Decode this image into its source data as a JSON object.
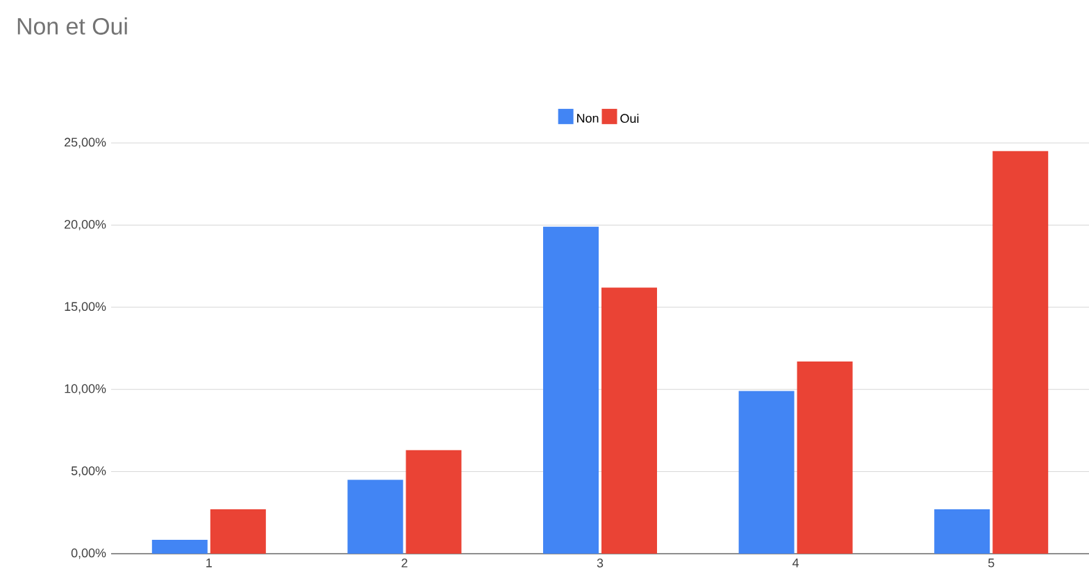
{
  "chart_data": {
    "type": "bar",
    "title": "Non et Oui",
    "categories": [
      "1",
      "2",
      "3",
      "4",
      "5"
    ],
    "series": [
      {
        "name": "Non",
        "color": "#4285f4",
        "values": [
          0.85,
          4.5,
          19.9,
          9.9,
          2.7
        ]
      },
      {
        "name": "Oui",
        "color": "#ea4335",
        "values": [
          2.7,
          6.3,
          16.2,
          11.7,
          24.5
        ]
      }
    ],
    "ylim": [
      0,
      25
    ],
    "yticks": [
      {
        "value": 0,
        "label": "0,00%"
      },
      {
        "value": 5,
        "label": "5,00%"
      },
      {
        "value": 10,
        "label": "10,00%"
      },
      {
        "value": 15,
        "label": "15,00%"
      },
      {
        "value": 20,
        "label": "20,00%"
      },
      {
        "value": 25,
        "label": "25,00%"
      }
    ],
    "grid": "y",
    "legend": "top"
  }
}
